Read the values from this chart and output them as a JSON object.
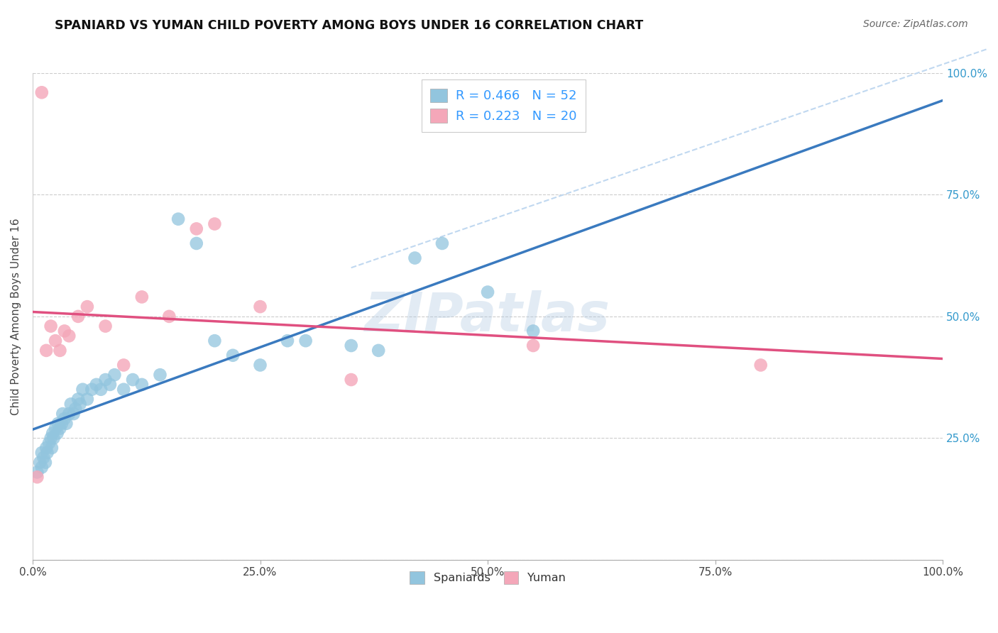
{
  "title": "SPANIARD VS YUMAN CHILD POVERTY AMONG BOYS UNDER 16 CORRELATION CHART",
  "source": "Source: ZipAtlas.com",
  "ylabel": "Child Poverty Among Boys Under 16",
  "watermark": "ZIPatlas",
  "spaniard_R": 0.466,
  "spaniard_N": 52,
  "yuman_R": 0.223,
  "yuman_N": 20,
  "spaniard_color": "#92c5de",
  "yuman_color": "#f4a7b9",
  "spaniard_line_color": "#3a7abf",
  "yuman_line_color": "#e05080",
  "diagonal_color": "#c0d8f0",
  "background_color": "#ffffff",
  "grid_color": "#cccccc",
  "xlim": [
    0,
    1
  ],
  "ylim": [
    0,
    1
  ],
  "xticks": [
    0.0,
    0.25,
    0.5,
    0.75,
    1.0
  ],
  "xtick_labels": [
    "0.0%",
    "25.0%",
    "50.0%",
    "75.0%",
    "100.0%"
  ],
  "yticks": [
    0.0,
    0.25,
    0.5,
    0.75,
    1.0
  ],
  "ytick_labels_right": [
    "",
    "25.0%",
    "50.0%",
    "75.0%",
    "100.0%"
  ],
  "sp_x": [
    0.005,
    0.008,
    0.01,
    0.01,
    0.012,
    0.014,
    0.015,
    0.016,
    0.018,
    0.02,
    0.021,
    0.022,
    0.023,
    0.025,
    0.027,
    0.028,
    0.03,
    0.032,
    0.033,
    0.035,
    0.037,
    0.04,
    0.042,
    0.045,
    0.047,
    0.05,
    0.052,
    0.055,
    0.06,
    0.065,
    0.07,
    0.075,
    0.08,
    0.085,
    0.09,
    0.1,
    0.11,
    0.12,
    0.14,
    0.16,
    0.18,
    0.2,
    0.22,
    0.25,
    0.28,
    0.3,
    0.35,
    0.38,
    0.42,
    0.45,
    0.5,
    0.55
  ],
  "sp_y": [
    0.18,
    0.2,
    0.22,
    0.19,
    0.21,
    0.2,
    0.23,
    0.22,
    0.24,
    0.25,
    0.23,
    0.26,
    0.25,
    0.27,
    0.26,
    0.28,
    0.27,
    0.28,
    0.3,
    0.29,
    0.28,
    0.3,
    0.32,
    0.3,
    0.31,
    0.33,
    0.32,
    0.35,
    0.33,
    0.35,
    0.36,
    0.35,
    0.37,
    0.36,
    0.38,
    0.35,
    0.37,
    0.36,
    0.38,
    0.7,
    0.65,
    0.45,
    0.42,
    0.4,
    0.45,
    0.45,
    0.44,
    0.43,
    0.62,
    0.65,
    0.55,
    0.47
  ],
  "yu_x": [
    0.005,
    0.01,
    0.015,
    0.02,
    0.025,
    0.03,
    0.035,
    0.04,
    0.05,
    0.06,
    0.08,
    0.1,
    0.12,
    0.15,
    0.18,
    0.2,
    0.25,
    0.35,
    0.55,
    0.8
  ],
  "yu_y": [
    0.17,
    0.96,
    0.43,
    0.48,
    0.45,
    0.43,
    0.47,
    0.46,
    0.5,
    0.52,
    0.48,
    0.4,
    0.54,
    0.5,
    0.68,
    0.69,
    0.52,
    0.37,
    0.44,
    0.4
  ]
}
